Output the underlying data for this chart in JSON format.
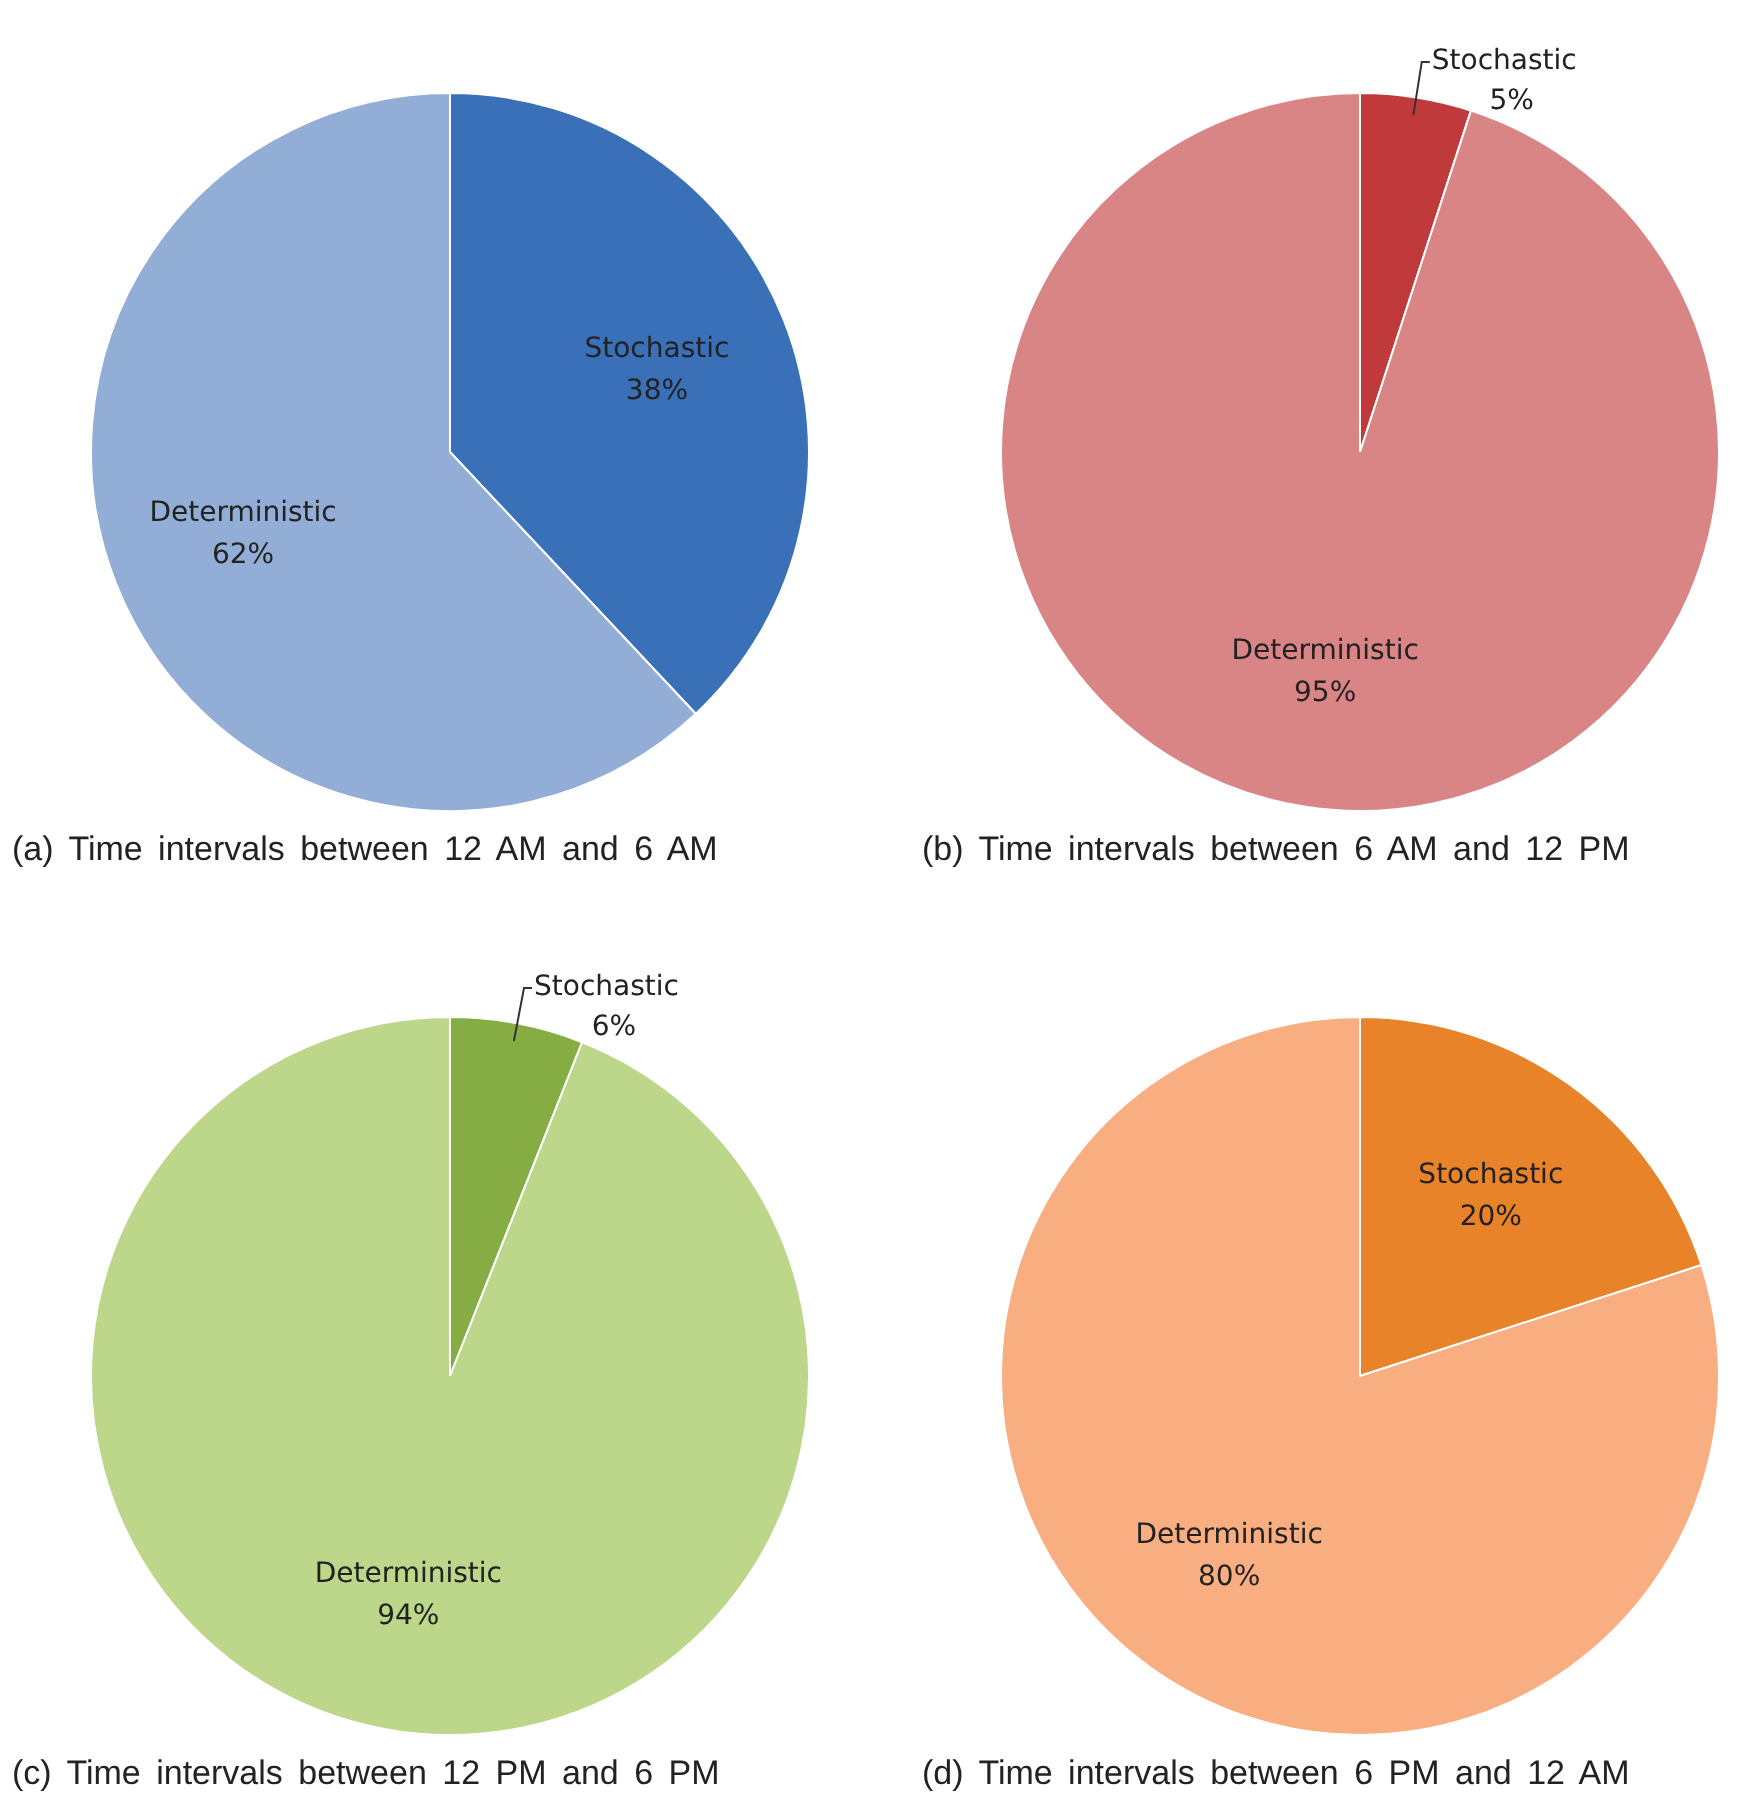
{
  "chart_data": [
    {
      "type": "pie",
      "title": "(a) Time intervals between 12 AM and 6 AM",
      "categories": [
        "Stochastic",
        "Deterministic"
      ],
      "values": [
        38,
        62
      ],
      "value_labels": [
        "38%",
        "62%"
      ],
      "colors": [
        "#3a70b8",
        "#93aed6"
      ]
    },
    {
      "type": "pie",
      "title": "(b) Time intervals between 6 AM and 12 PM",
      "categories": [
        "Stochastic",
        "Deterministic"
      ],
      "values": [
        5,
        95
      ],
      "value_labels": [
        "5%",
        "95%"
      ],
      "colors": [
        "#c0393b",
        "#d98585"
      ]
    },
    {
      "type": "pie",
      "title": "(c) Time intervals between 12 PM and 6 PM",
      "categories": [
        "Stochastic",
        "Deterministic"
      ],
      "values": [
        6,
        94
      ],
      "value_labels": [
        "6%",
        "94%"
      ],
      "colors": [
        "#86ad44",
        "#bcd68a"
      ]
    },
    {
      "type": "pie",
      "title": "(d) Time intervals between 6 PM and 12 AM",
      "categories": [
        "Stochastic",
        "Deterministic"
      ],
      "values": [
        20,
        80
      ],
      "value_labels": [
        "20%",
        "80%"
      ],
      "colors": [
        "#e8832a",
        "#f8ae80"
      ]
    }
  ]
}
